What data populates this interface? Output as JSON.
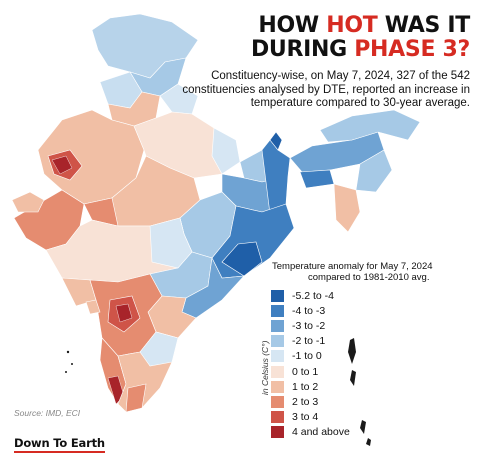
{
  "title": {
    "line1_a": "HOW ",
    "line1_hl": "HOT",
    "line1_b": " WAS IT",
    "line2_a": "DURING ",
    "line2_hl": "PHASE 3?"
  },
  "subtitle": "Constituency-wise, on May 7, 2024, 327 of the 542 constituencies analysed by DTE, reported an increase in temperature compared to 30-year average.",
  "legend": {
    "title": "Temperature anomaly for May 7, 2024",
    "title_sub": "compared to 1981-2010 avg.",
    "unit": "in Celsius (C°)",
    "items": [
      {
        "label": "-5.2 to -4",
        "color": "#1f5fa8"
      },
      {
        "label": "-4 to -3",
        "color": "#3f7fc0"
      },
      {
        "label": "-3 to -2",
        "color": "#6fa3d3"
      },
      {
        "label": "-2 to -1",
        "color": "#a6c9e6"
      },
      {
        "label": "-1 to 0",
        "color": "#d6e6f3"
      },
      {
        "label": "0 to 1",
        "color": "#f8e2d6"
      },
      {
        "label": "1 to 2",
        "color": "#f1bfa5"
      },
      {
        "label": "2 to 3",
        "color": "#e58c70"
      },
      {
        "label": "3 to 4",
        "color": "#cf5448"
      },
      {
        "label": "4 and above",
        "color": "#a8242a"
      }
    ]
  },
  "source": "Source: IMD, ECI",
  "brand": "Down To Earth"
}
